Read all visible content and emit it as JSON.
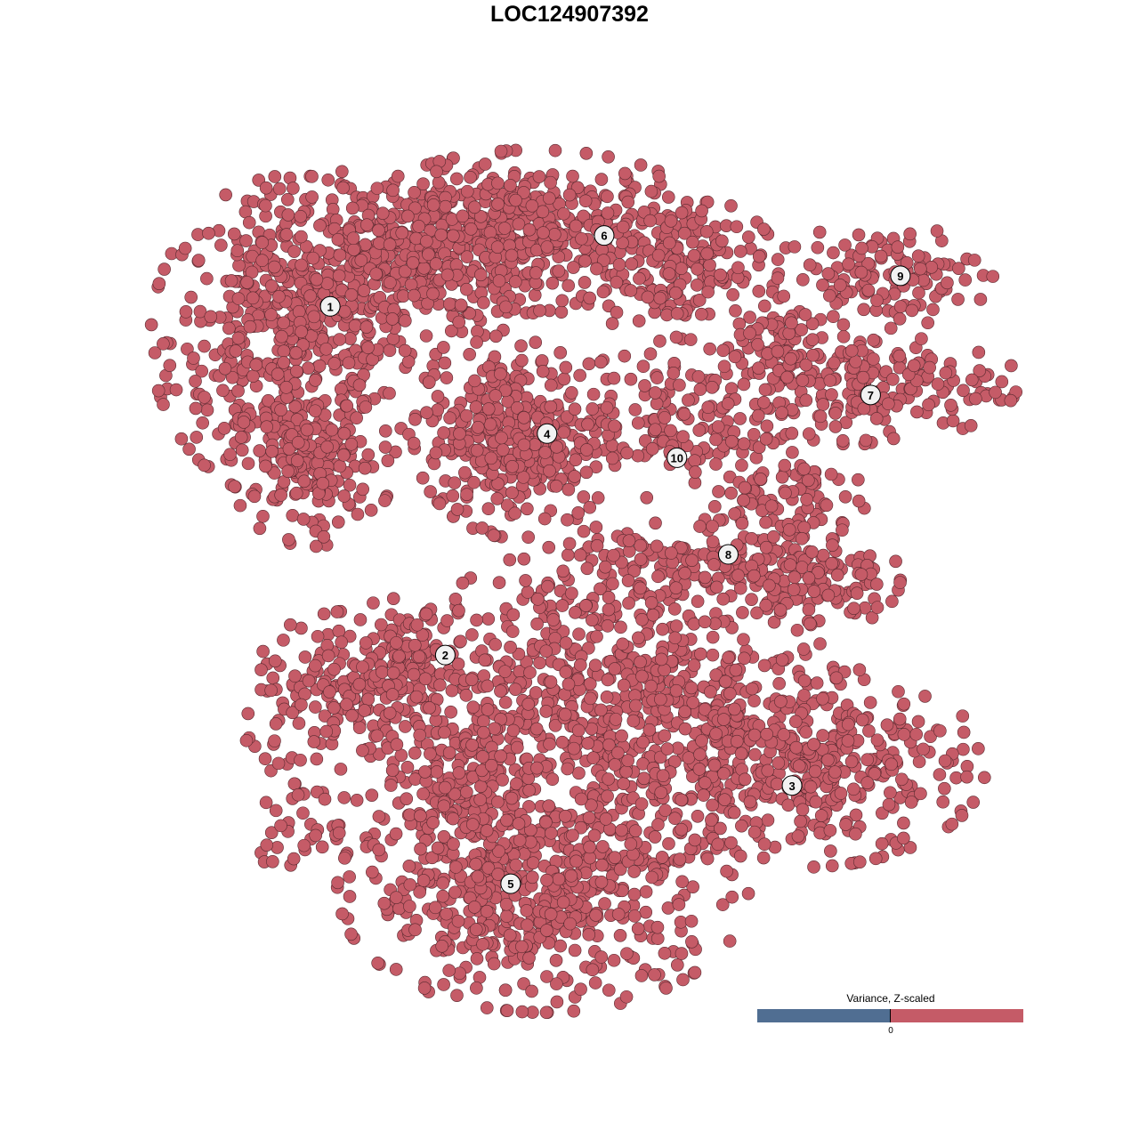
{
  "chart_data": {
    "type": "scatter",
    "title": "LOC124907392",
    "xlabel": "",
    "ylabel": "",
    "axes_visible": false,
    "grid": false,
    "xlim": [
      0,
      100
    ],
    "ylim": [
      0,
      100
    ],
    "point_color": "#c55b67",
    "point_edge_color": "#5a2a30",
    "note_points": "approximate point clouds per cluster region (center, spread, approximate count) in embedding units",
    "regions": [
      {
        "cluster": "1",
        "center": [
          13.98,
          78.45
        ],
        "spread": [
          7.5,
          8.8
        ],
        "count": 500
      },
      {
        "cluster": "1",
        "center": [
          26.9,
          88.4
        ],
        "spread": [
          8.6,
          5.0
        ],
        "count": 350
      },
      {
        "cluster": "1",
        "center": [
          16.1,
          62.7
        ],
        "spread": [
          4.3,
          4.4
        ],
        "count": 150
      },
      {
        "cluster": "6",
        "center": [
          43.0,
          91.7
        ],
        "spread": [
          9.7,
          4.4
        ],
        "count": 400
      },
      {
        "cluster": "6",
        "center": [
          60.2,
          87.3
        ],
        "spread": [
          5.4,
          3.9
        ],
        "count": 150
      },
      {
        "cluster": "4",
        "center": [
          40.9,
          66.3
        ],
        "spread": [
          5.4,
          5.5
        ],
        "count": 350
      },
      {
        "cluster": "9",
        "center": [
          84.9,
          86.2
        ],
        "spread": [
          5.9,
          2.8
        ],
        "count": 120
      },
      {
        "cluster": "7",
        "center": [
          81.7,
          72.9
        ],
        "spread": [
          8.6,
          3.3
        ],
        "count": 200
      },
      {
        "cluster": "7",
        "center": [
          72.0,
          77.3
        ],
        "spread": [
          2.7,
          3.3
        ],
        "count": 60
      },
      {
        "cluster": "10",
        "center": [
          59.1,
          68.5
        ],
        "spread": [
          4.8,
          4.4
        ],
        "count": 120
      },
      {
        "cluster": "8",
        "center": [
          73.1,
          58.6
        ],
        "spread": [
          4.3,
          5.5
        ],
        "count": 150
      },
      {
        "cluster": "8",
        "center": [
          77.4,
          48.6
        ],
        "spread": [
          4.3,
          2.8
        ],
        "count": 100
      },
      {
        "cluster": "8",
        "center": [
          59.1,
          49.7
        ],
        "spread": [
          6.5,
          2.8
        ],
        "count": 100
      },
      {
        "cluster": "2",
        "center": [
          21.5,
          33.1
        ],
        "spread": [
          6.5,
          5.0
        ],
        "count": 200
      },
      {
        "cluster": "2",
        "center": [
          28.0,
          39.8
        ],
        "spread": [
          4.3,
          2.8
        ],
        "count": 80
      },
      {
        "cluster": "2",
        "center": [
          15.1,
          17.7
        ],
        "spread": [
          3.8,
          2.2
        ],
        "count": 40
      },
      {
        "cluster": "5",
        "center": [
          52.7,
          33.1
        ],
        "spread": [
          11.8,
          8.8
        ],
        "count": 700
      },
      {
        "cluster": "3",
        "center": [
          75.3,
          25.4
        ],
        "spread": [
          9.7,
          5.5
        ],
        "count": 400
      },
      {
        "cluster": "5",
        "center": [
          44.1,
          9.9
        ],
        "spread": [
          10.8,
          6.6
        ],
        "count": 550
      },
      {
        "cluster": "5",
        "center": [
          34.4,
          21.0
        ],
        "spread": [
          3.8,
          6.6
        ],
        "count": 150
      }
    ],
    "cluster_labels": [
      {
        "label": "1",
        "x": 18.4,
        "y": 82.4
      },
      {
        "label": "2",
        "x": 32.3,
        "y": 39.1
      },
      {
        "label": "3",
        "x": 74.2,
        "y": 22.9
      },
      {
        "label": "4",
        "x": 44.6,
        "y": 66.6
      },
      {
        "label": "5",
        "x": 40.2,
        "y": 10.7
      },
      {
        "label": "6",
        "x": 51.5,
        "y": 91.2
      },
      {
        "label": "7",
        "x": 83.7,
        "y": 71.4
      },
      {
        "label": "8",
        "x": 66.5,
        "y": 51.6
      },
      {
        "label": "9",
        "x": 87.3,
        "y": 86.2
      },
      {
        "label": "10",
        "x": 60.3,
        "y": 63.6
      }
    ],
    "legend": {
      "title": "Variance, Z-scaled",
      "tick_label": "0",
      "low_color": "#506e92",
      "high_color": "#c55b67",
      "placement": "bottom-right"
    }
  }
}
